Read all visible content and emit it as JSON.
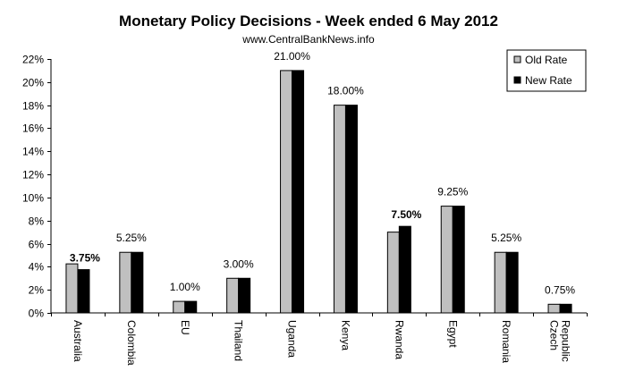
{
  "chart_data": {
    "type": "bar",
    "title": "Monetary Policy Decisions - Week ended 6 May 2012",
    "subtitle": "www.CentralBankNews.info",
    "xlabel": "",
    "ylabel": "",
    "ylim": [
      0,
      22
    ],
    "yticks": [
      "0%",
      "2%",
      "4%",
      "6%",
      "8%",
      "10%",
      "12%",
      "14%",
      "16%",
      "18%",
      "20%",
      "22%"
    ],
    "ytick_values": [
      0,
      2,
      4,
      6,
      8,
      10,
      12,
      14,
      16,
      18,
      20,
      22
    ],
    "categories": [
      [
        "Australia"
      ],
      [
        "Colombia"
      ],
      [
        "EU"
      ],
      [
        "Thailand"
      ],
      [
        "Uganda"
      ],
      [
        "Kenya"
      ],
      [
        "Rwanda"
      ],
      [
        "Egypt"
      ],
      [
        "Romania"
      ],
      [
        "Czech",
        "Republic"
      ]
    ],
    "series": [
      {
        "name": "Old Rate",
        "color": "#c0c0c0",
        "values": [
          4.25,
          5.25,
          1.0,
          3.0,
          21.0,
          18.0,
          7.0,
          9.25,
          5.25,
          0.75
        ]
      },
      {
        "name": "New Rate",
        "color": "#000000",
        "values": [
          3.75,
          5.25,
          1.0,
          3.0,
          21.0,
          18.0,
          7.5,
          9.25,
          5.25,
          0.75
        ]
      }
    ],
    "data_labels": [
      "3.75%",
      "5.25%",
      "1.00%",
      "3.00%",
      "21.00%",
      "18.00%",
      "7.50%",
      "9.25%",
      "5.25%",
      "0.75%"
    ],
    "data_label_bold": [
      true,
      false,
      false,
      false,
      false,
      false,
      true,
      false,
      false,
      false
    ],
    "legend": {
      "placement": "top-right",
      "entries": [
        "Old Rate",
        "New Rate"
      ]
    },
    "grid": false
  }
}
